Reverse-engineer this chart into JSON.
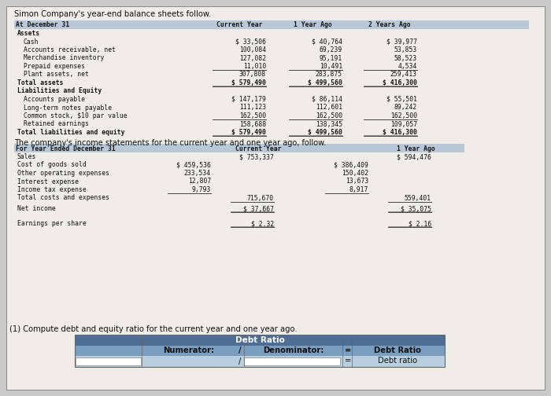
{
  "title": "Simon Company's year-end balance sheets follow.",
  "section1_header": "At December 31",
  "col_headers_bs": [
    "Current Year",
    "1 Year Ago",
    "2 Years Ago"
  ],
  "bs_rows": [
    [
      "Assets",
      "",
      "",
      "",
      false
    ],
    [
      "Cash",
      "$ 33,506",
      "$ 40,764",
      "$ 39,977",
      false
    ],
    [
      "Accounts receivable, net",
      "100,084",
      "69,239",
      "53,853",
      false
    ],
    [
      "Merchandise inventory",
      "127,082",
      "95,191",
      "58,523",
      false
    ],
    [
      "Prepaid expenses",
      "11,010",
      "10,491",
      "4,534",
      false
    ],
    [
      "Plant assets, net",
      "307,808",
      "283,875",
      "259,413",
      true
    ],
    [
      "Total assets",
      "$ 579,490",
      "$ 499,560",
      "$ 416,300",
      false
    ],
    [
      "Liabilities and Equity",
      "",
      "",
      "",
      false
    ],
    [
      "Accounts payable",
      "$ 147,179",
      "$ 86,114",
      "$ 55,501",
      false
    ],
    [
      "Long-term notes payable",
      "111,123",
      "112,601",
      "89,242",
      false
    ],
    [
      "Common stock, $10 par value",
      "162,500",
      "162,500",
      "162,500",
      false
    ],
    [
      "Retained earnings",
      "158,688",
      "138,345",
      "109,057",
      true
    ],
    [
      "Total liabilities and equity",
      "$ 579,490",
      "$ 499,560",
      "$ 416,300",
      false
    ]
  ],
  "income_title": "The company's income statements for the current year and one year ago, follow.",
  "section2_header": "For Year Ended December 31",
  "col_headers_is": [
    "Current Year",
    "1 Year Ago"
  ],
  "is_rows": [
    [
      "Sales",
      "",
      "$ 753,337",
      "",
      "$ 594,476"
    ],
    [
      "Cost of goods sold",
      "$ 459,536",
      "",
      "$ 386,409",
      ""
    ],
    [
      "Other operating expenses",
      "233,534",
      "",
      "150,402",
      ""
    ],
    [
      "Interest expense",
      "12,807",
      "",
      "13,673",
      ""
    ],
    [
      "Income tax expense",
      "9,793",
      "",
      "8,917",
      ""
    ],
    [
      "Total costs and expenses",
      "",
      "715,670",
      "",
      "559,401"
    ],
    [
      "Net income",
      "",
      "$ 37,667",
      "",
      "$ 35,075"
    ],
    [
      "Earnings per share",
      "",
      "$ 2.32",
      "",
      "$ 2.16"
    ]
  ],
  "question": "(1) Compute debt and equity ratio for the current year and one year ago.",
  "t3_header": "Debt Ratio",
  "t3_r1c1": "Numerator:",
  "t3_r1c2": "/",
  "t3_r1c3": "Denominator:",
  "t3_r1c4": "=",
  "t3_r1c5": "Debt Ratio",
  "t3_r2c2": "/",
  "t3_r2c4": "=",
  "t3_r2c5": "Debt ratio",
  "bg_outer": "#c8c8c8",
  "bg_page": "#f0ede8",
  "bg_header_bs": "#b8c8d8",
  "bg_table3_hdr": "#4e6e96",
  "bg_table3_r1": "#7a9ec0",
  "bg_table3_r2": "#b8cfe0",
  "color_text": "#111111",
  "color_line": "#444444"
}
